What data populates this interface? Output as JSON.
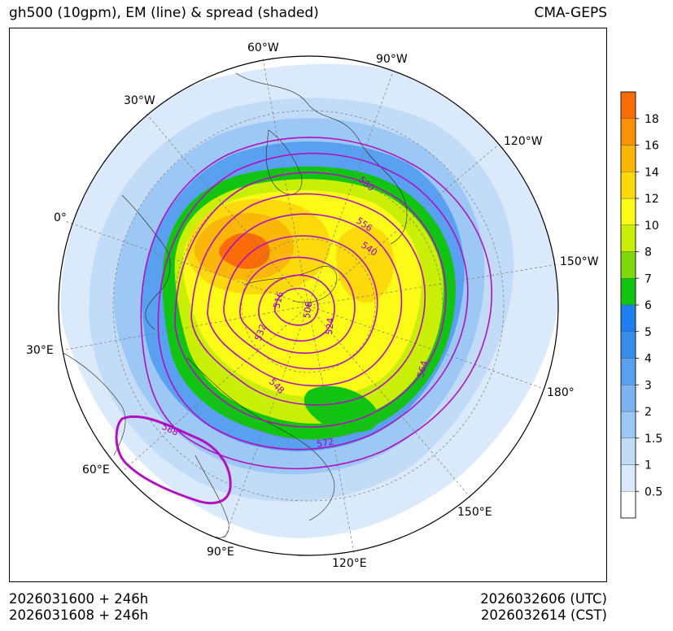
{
  "header": {
    "title": "gh500 (10gpm), EM (line) & spread (shaded)",
    "model": "CMA-GEPS"
  },
  "footer": {
    "init_utc": "2026031600 + 246h",
    "init_cst": "2026031608 + 246h",
    "valid_utc": "2026032606 (UTC)",
    "valid_cst": "2026032614 (CST)"
  },
  "map": {
    "projection": "north polar stereographic",
    "longitude_labels": [
      "60°W",
      "90°W",
      "30°W",
      "120°W",
      "0°",
      "150°W",
      "30°E",
      "180°",
      "60°E",
      "150°E",
      "90°E",
      "120°E"
    ],
    "contour_labels": [
      "580",
      "556",
      "540",
      "516",
      "508",
      "524",
      "532",
      "548",
      "564",
      "572",
      "588"
    ],
    "colors": {
      "contour": "#b010c0",
      "frame": "#000000"
    }
  },
  "colorbar": {
    "levels": [
      "0.5",
      "1",
      "1.5",
      "2",
      "3",
      "4",
      "5",
      "6",
      "7",
      "8",
      "10",
      "12",
      "14",
      "16",
      "18"
    ],
    "colors": [
      "#ffffff",
      "#dbeafb",
      "#c2dcf8",
      "#9dc8f5",
      "#7cb4f2",
      "#5aa0f0",
      "#3a8cef",
      "#1e7ff0",
      "#12c412",
      "#7ed80e",
      "#c8ef05",
      "#fbfb17",
      "#fbd90a",
      "#fbb707",
      "#fb9205",
      "#fb6c06"
    ]
  }
}
